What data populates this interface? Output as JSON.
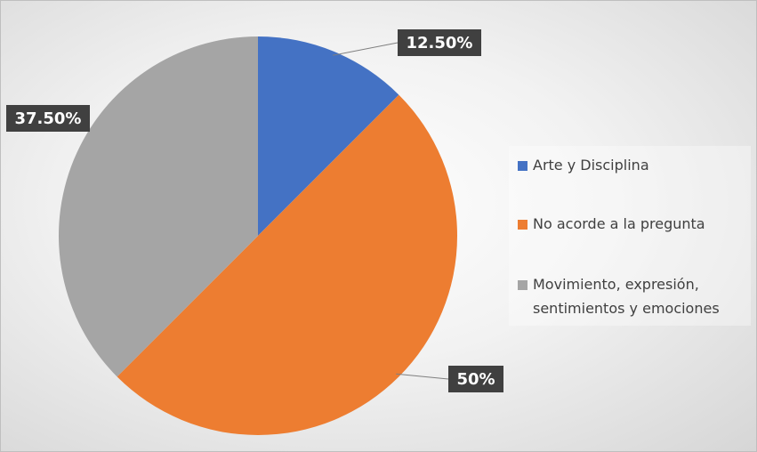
{
  "chart_data": {
    "type": "pie",
    "categories": [
      "Arte y Disciplina",
      "No acorde a la pregunta",
      "Movimiento, expresión, sentimientos y emociones"
    ],
    "values": [
      12.5,
      50,
      37.5
    ],
    "value_labels": [
      "12.50%",
      "50%",
      "37.50%"
    ],
    "colors": [
      "#4472c4",
      "#ed7d31",
      "#a5a5a5"
    ],
    "legend": "right"
  }
}
